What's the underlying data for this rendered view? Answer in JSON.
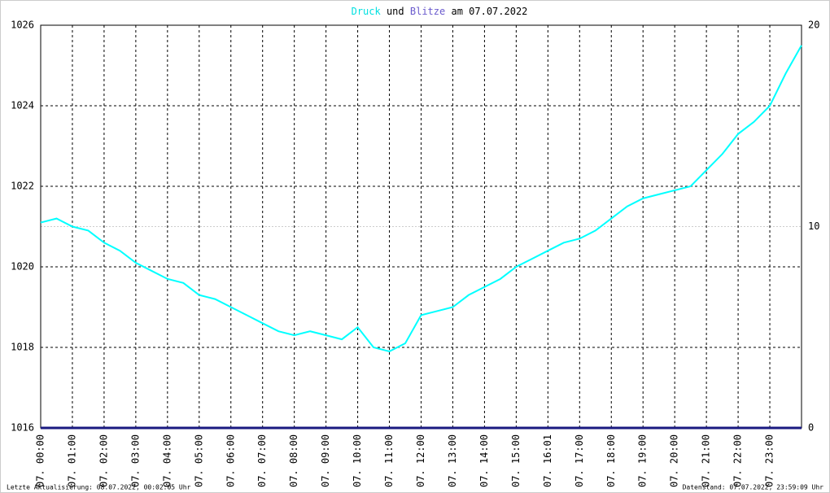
{
  "chart_data": {
    "type": "line",
    "title_parts": [
      "und",
      "am 07.07.2022"
    ],
    "categories": [
      "07. 00:00",
      null,
      "07. 01:00",
      null,
      "07. 02:00",
      null,
      "07. 03:00",
      null,
      "07. 04:00",
      null,
      "07. 05:00",
      null,
      "07. 06:00",
      null,
      "07. 07:00",
      null,
      "07. 08:00",
      null,
      "07. 09:00",
      null,
      "07. 10:00",
      null,
      "07. 11:00",
      null,
      "07. 12:00",
      null,
      "07. 13:00",
      null,
      "07. 14:00",
      null,
      "07. 15:00",
      null,
      "07. 16:01",
      null,
      "07. 17:00",
      null,
      "07. 18:00",
      null,
      "07. 19:00",
      null,
      "07. 20:00",
      null,
      "07. 21:00",
      null,
      "07. 22:00",
      null,
      "07. 23:00",
      null,
      null
    ],
    "series": [
      {
        "name": "Druck",
        "color": "#00ffff",
        "axis": "y",
        "values": [
          1021.1,
          1021.2,
          1021.0,
          1020.9,
          1020.6,
          1020.4,
          1020.1,
          1019.9,
          1019.7,
          1019.6,
          1019.3,
          1019.2,
          1019.0,
          1018.8,
          1018.6,
          1018.4,
          1018.3,
          1018.4,
          1018.3,
          1018.2,
          1018.5,
          1018.0,
          1017.9,
          1018.1,
          1018.8,
          1018.9,
          1019.0,
          1019.3,
          1019.5,
          1019.7,
          1020.0,
          1020.2,
          1020.4,
          1020.6,
          1020.7,
          1020.9,
          1021.2,
          1021.5,
          1021.7,
          1021.8,
          1021.9,
          1022.0,
          1022.4,
          1022.8,
          1023.3,
          1023.6,
          1024.0,
          1024.8,
          1025.5
        ]
      },
      {
        "name": "Blitze",
        "color": "#1a1a80",
        "axis": "y2",
        "values": [
          0,
          0,
          0,
          0,
          0,
          0,
          0,
          0,
          0,
          0,
          0,
          0,
          0,
          0,
          0,
          0,
          0,
          0,
          0,
          0,
          0,
          0,
          0,
          0,
          0,
          0,
          0,
          0,
          0,
          0,
          0,
          0,
          0,
          0,
          0,
          0,
          0,
          0,
          0,
          0,
          0,
          0,
          0,
          0,
          0,
          0,
          0,
          0,
          0
        ]
      }
    ],
    "ylim": [
      1016,
      1026
    ],
    "yticks": [
      1016,
      1018,
      1020,
      1022,
      1024,
      1026
    ],
    "y2lim": [
      0,
      20
    ],
    "y2ticks": [
      0,
      10,
      20
    ],
    "grid": true,
    "footer_left": "Letzte Aktualisierung: 08.07.2022, 00:02:05 Uhr",
    "footer_right": "Datenstand: 07.07.2022, 23:59:09 Uhr"
  }
}
